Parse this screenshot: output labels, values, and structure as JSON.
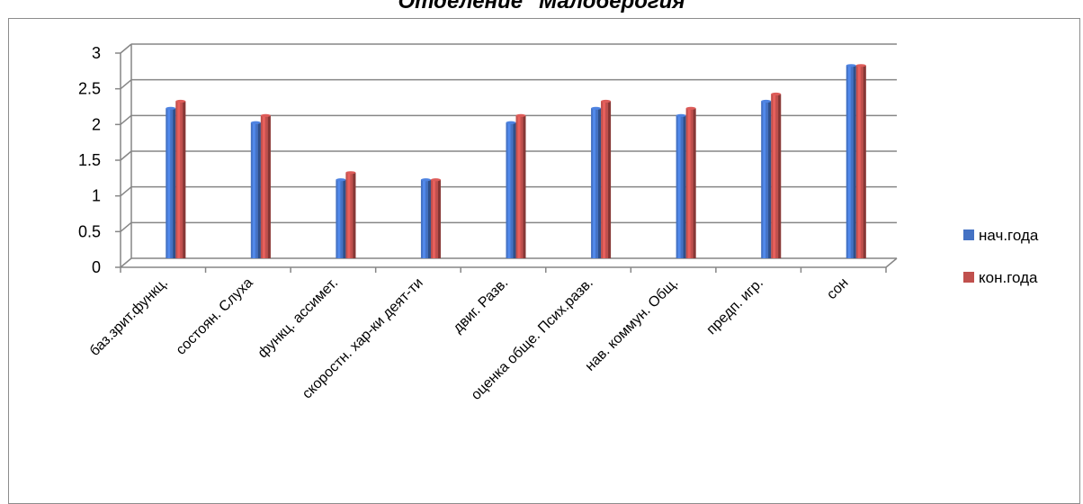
{
  "chart_data": {
    "type": "bar",
    "title": "Отделение \"Малоберогия",
    "categories": [
      "баз.зрит.функц.",
      "состоян. Слуха",
      "функц. ассимет.",
      "скоростн. хар-ки деят-ти",
      "двиг. Разв.",
      "оценка обще. Псих.разв.",
      "нав. коммун. Общ.",
      "предп. игр.",
      "сон"
    ],
    "series": [
      {
        "name": "нач.года",
        "color": "#4472c4",
        "values": [
          2.1,
          1.9,
          1.1,
          1.1,
          1.9,
          2.1,
          2.0,
          2.2,
          2.7
        ]
      },
      {
        "name": "кон.года",
        "color": "#c0504d",
        "values": [
          2.2,
          2.0,
          1.2,
          1.1,
          2.0,
          2.2,
          2.1,
          2.3,
          2.7
        ]
      }
    ],
    "yticks": [
      "0",
      "0.5",
      "1",
      "1.5",
      "2",
      "2.5",
      "3"
    ],
    "ylim": [
      0,
      3
    ],
    "grid": true,
    "legend": "right"
  }
}
